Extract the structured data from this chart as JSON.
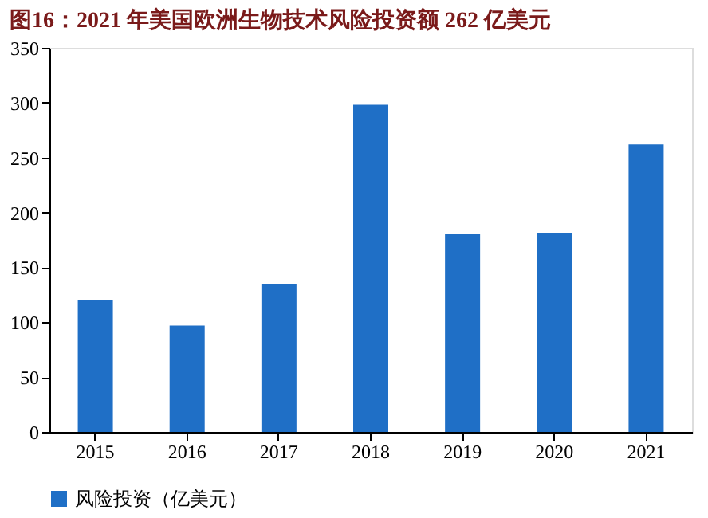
{
  "chart_data": {
    "type": "bar",
    "title": "图16：2021 年美国欧洲生物技术风险投资额 262 亿美元",
    "categories": [
      "2015",
      "2016",
      "2017",
      "2018",
      "2019",
      "2020",
      "2021"
    ],
    "series": [
      {
        "name": "风险投资（亿美元）",
        "color": "#1f6fc6",
        "values": [
          120,
          97,
          135,
          298,
          180,
          181,
          262
        ]
      }
    ],
    "ylim": [
      0,
      350
    ],
    "yticks": [
      0,
      50,
      100,
      150,
      200,
      250,
      300,
      350
    ],
    "grid": false,
    "legend": "bottom"
  }
}
